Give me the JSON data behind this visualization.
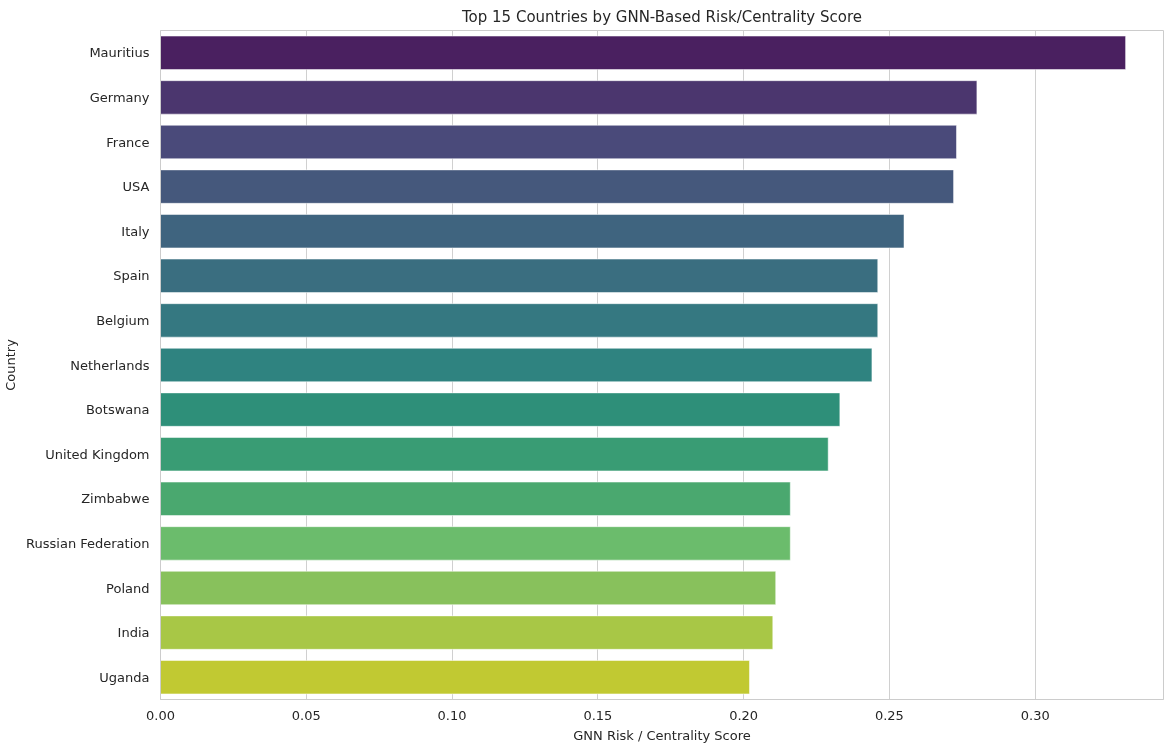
{
  "chart_data": {
    "type": "bar",
    "orientation": "horizontal",
    "title": "Top 15 Countries by GNN-Based Risk/Centrality Score",
    "xlabel": "GNN Risk / Centrality Score",
    "ylabel": "Country",
    "categories": [
      "Mauritius",
      "Germany",
      "France",
      "USA",
      "Italy",
      "Spain",
      "Belgium",
      "Netherlands",
      "Botswana",
      "United Kingdom",
      "Zimbabwe",
      "Russian Federation",
      "Poland",
      "India",
      "Uganda"
    ],
    "values": [
      0.331,
      0.28,
      0.273,
      0.272,
      0.255,
      0.246,
      0.246,
      0.244,
      0.233,
      0.229,
      0.216,
      0.216,
      0.211,
      0.21,
      0.202
    ],
    "colors": [
      "#4a2060",
      "#4b366e",
      "#4a4a7a",
      "#45587c",
      "#3f647f",
      "#3a6e80",
      "#357881",
      "#2f8380",
      "#2e8f79",
      "#399c74",
      "#4aa86f",
      "#6bbc6c",
      "#88c15c",
      "#a8c746",
      "#c1c932"
    ],
    "xlim": [
      0,
      0.344
    ],
    "xticks": [
      {
        "value": 0,
        "label": "0.00"
      },
      0.05,
      {
        "value": 0.1,
        "label": "0.10"
      },
      0.15,
      {
        "value": 0.2,
        "label": "0.20"
      },
      0.25,
      {
        "value": 0.3,
        "label": "0.30"
      }
    ],
    "grid": "x"
  }
}
